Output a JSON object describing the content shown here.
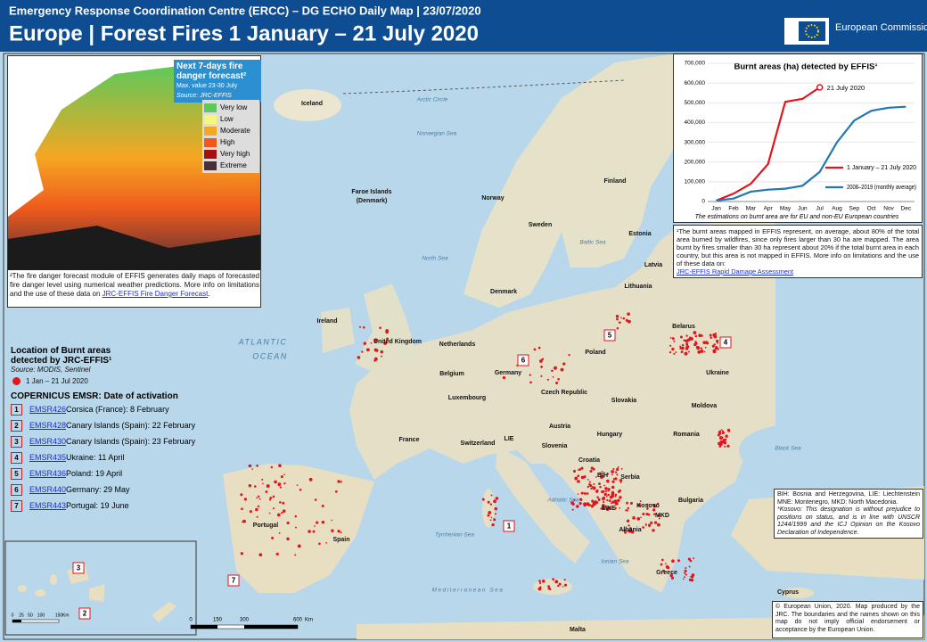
{
  "header": {
    "supertitle": "Emergency Response Coordination Centre (ERCC) – DG ECHO Daily  Map | 23/07/2020",
    "title": "Europe | Forest Fires 1 January – 21 July 2020",
    "logo": "European Commission"
  },
  "forecast": {
    "title": "Next 7-days fire danger forecast²",
    "subtitle": "Max. value 23-30 July",
    "source": "Source: JRC-EFFIS",
    "classes": [
      {
        "label": "Very low",
        "color": "#5ec95a"
      },
      {
        "label": "Low",
        "color": "#f7f57a"
      },
      {
        "label": "Moderate",
        "color": "#f5a623"
      },
      {
        "label": "High",
        "color": "#ef5a1c"
      },
      {
        "label": "Very high",
        "color": "#a81010"
      },
      {
        "label": "Extreme",
        "color": "#4a2c3a"
      }
    ],
    "note": "²The fire danger forecast module of EFFIS generates daily maps of forecasted fire danger level using numerical weather predictions. More info on limitations and the use of these data on",
    "link": "JRC-EFFIS Fire Danger Forecast"
  },
  "burnt": {
    "title": "Location of Burnt areas detected by JRC-EFFIS¹",
    "source": "Source: MODIS, Sentinel",
    "period": "1 Jan – 21 Jul 2020"
  },
  "emsr": {
    "title": "COPERNICUS  EMSR:  Date of activation",
    "items": [
      {
        "number": "1",
        "code": "EMSR426",
        "text": "Corsica (France): 8 February"
      },
      {
        "number": "2",
        "code": "EMSR428",
        "text": "Canary Islands (Spain): 22 February"
      },
      {
        "number": "3",
        "code": "EMSR430",
        "text": "Canary Islands (Spain): 23 February"
      },
      {
        "number": "4",
        "code": "EMSR435",
        "text": "Ukraine: 11 April"
      },
      {
        "number": "5",
        "code": "EMSR436",
        "text": "Poland: 19 April"
      },
      {
        "number": "6",
        "code": "EMSR440",
        "text": "Germany: 29 May"
      },
      {
        "number": "7",
        "code": "EMSR443",
        "text": "Portugal: 19 June"
      }
    ]
  },
  "chart_data": {
    "type": "line",
    "title": "Burnt areas (ha) detected by EFFIS¹",
    "categories": [
      "Jan",
      "Feb",
      "Mar",
      "Apr",
      "May",
      "Jun",
      "Jul",
      "Aug",
      "Sep",
      "Oct",
      "Nov",
      "Dec"
    ],
    "series": [
      {
        "name": "1 January – 21 July 2020",
        "color": "#e0161c",
        "values": [
          5000,
          40000,
          90000,
          190000,
          505000,
          520000,
          578000,
          null,
          null,
          null,
          null,
          null
        ]
      },
      {
        "name": "2008–2019 (monthly average)",
        "color": "#1f77b4",
        "values": [
          5000,
          15000,
          50000,
          60000,
          65000,
          80000,
          150000,
          300000,
          410000,
          460000,
          475000,
          480000
        ]
      }
    ],
    "annotation": "21 July 2020",
    "ylim": [
      0,
      700000
    ],
    "yticks": [
      0,
      {
        "value": 100000,
        "label": "100,000"
      },
      {
        "value": 200000,
        "label": "200,000"
      },
      {
        "value": 300000,
        "label": "300,000"
      },
      {
        "value": 400000,
        "label": "400,000"
      },
      {
        "value": 500000,
        "label": "500,000"
      },
      {
        "value": 600000,
        "label": "600,000"
      },
      {
        "value": 700000,
        "label": "700,000"
      }
    ],
    "note": "The estimations on burnt area are for EU and non-EU European countries"
  },
  "effis_note": {
    "text": "¹The burnt areas mapped in EFFIS represent, on average, about 80% of the total area burned by wildfires, since only fires larger than 30 ha are mapped. The area burnt by fires smaller than 30 ha represent about 20% if the total burnt area in each country, but this area is not mapped in EFFIS. More info on limitations and the use of these data on:",
    "link": "JRC-EFFIS  Rapid  Damage  Assessment"
  },
  "abbreviations": "BIH: Bosnia and Herzegovina, LIE: Liechtenstein MNE: Montenegro, MKD: North Macedonia.",
  "kosovo": "*Kosovo: This designation is without prejudice to positions on status, and is in line with UNSCR 1244/1999 and the ICJ Opinion on the Kosovo Declaration of Independence.",
  "copyright": "© European Union, 2020. Map produced by the JRC. The boundaries and the names shown on this map do not imply official endorsement or acceptance by the European Union.",
  "map_labels": [
    "Iceland",
    "Arctic Circle",
    "Norwegian Sea",
    "Faroe Islands",
    "(Denmark)",
    "Norway",
    "Sweden",
    "Finland",
    "Estonia",
    "Baltic Sea",
    "Latvia",
    "Lithuania",
    "North Sea",
    "Denmark",
    "Ireland",
    "United Kingdom",
    "Netherlands",
    "Belarus",
    "Poland",
    "Germany",
    "Belgium",
    "Ukraine",
    "Luxembourg",
    "Czech Republic",
    "Slovakia",
    "Moldova",
    "Austria",
    "Hungary",
    "Romania",
    "France",
    "Switzerland",
    "LIE",
    "Slovenia",
    "Black Sea",
    "Croatia",
    "BIH",
    "Serbia",
    "Bulgaria",
    "MNE",
    "Kosovo",
    "MKD",
    "Albania",
    "Adriatic Sea",
    "Portugal",
    "Spain",
    "Tyrrhenian Sea",
    "Ionian Sea",
    "Greece",
    "Mediterranean Sea",
    "Cyprus",
    "Malta",
    "ATLANTIC",
    "OCEAN"
  ],
  "inset_labels": [
    "ATLANTIC",
    "OCEAN"
  ],
  "scale": [
    "0",
    "150",
    "300",
    "600",
    "Km"
  ],
  "inset_scale": [
    "0",
    "25",
    "50",
    "100",
    "150",
    "Km"
  ]
}
